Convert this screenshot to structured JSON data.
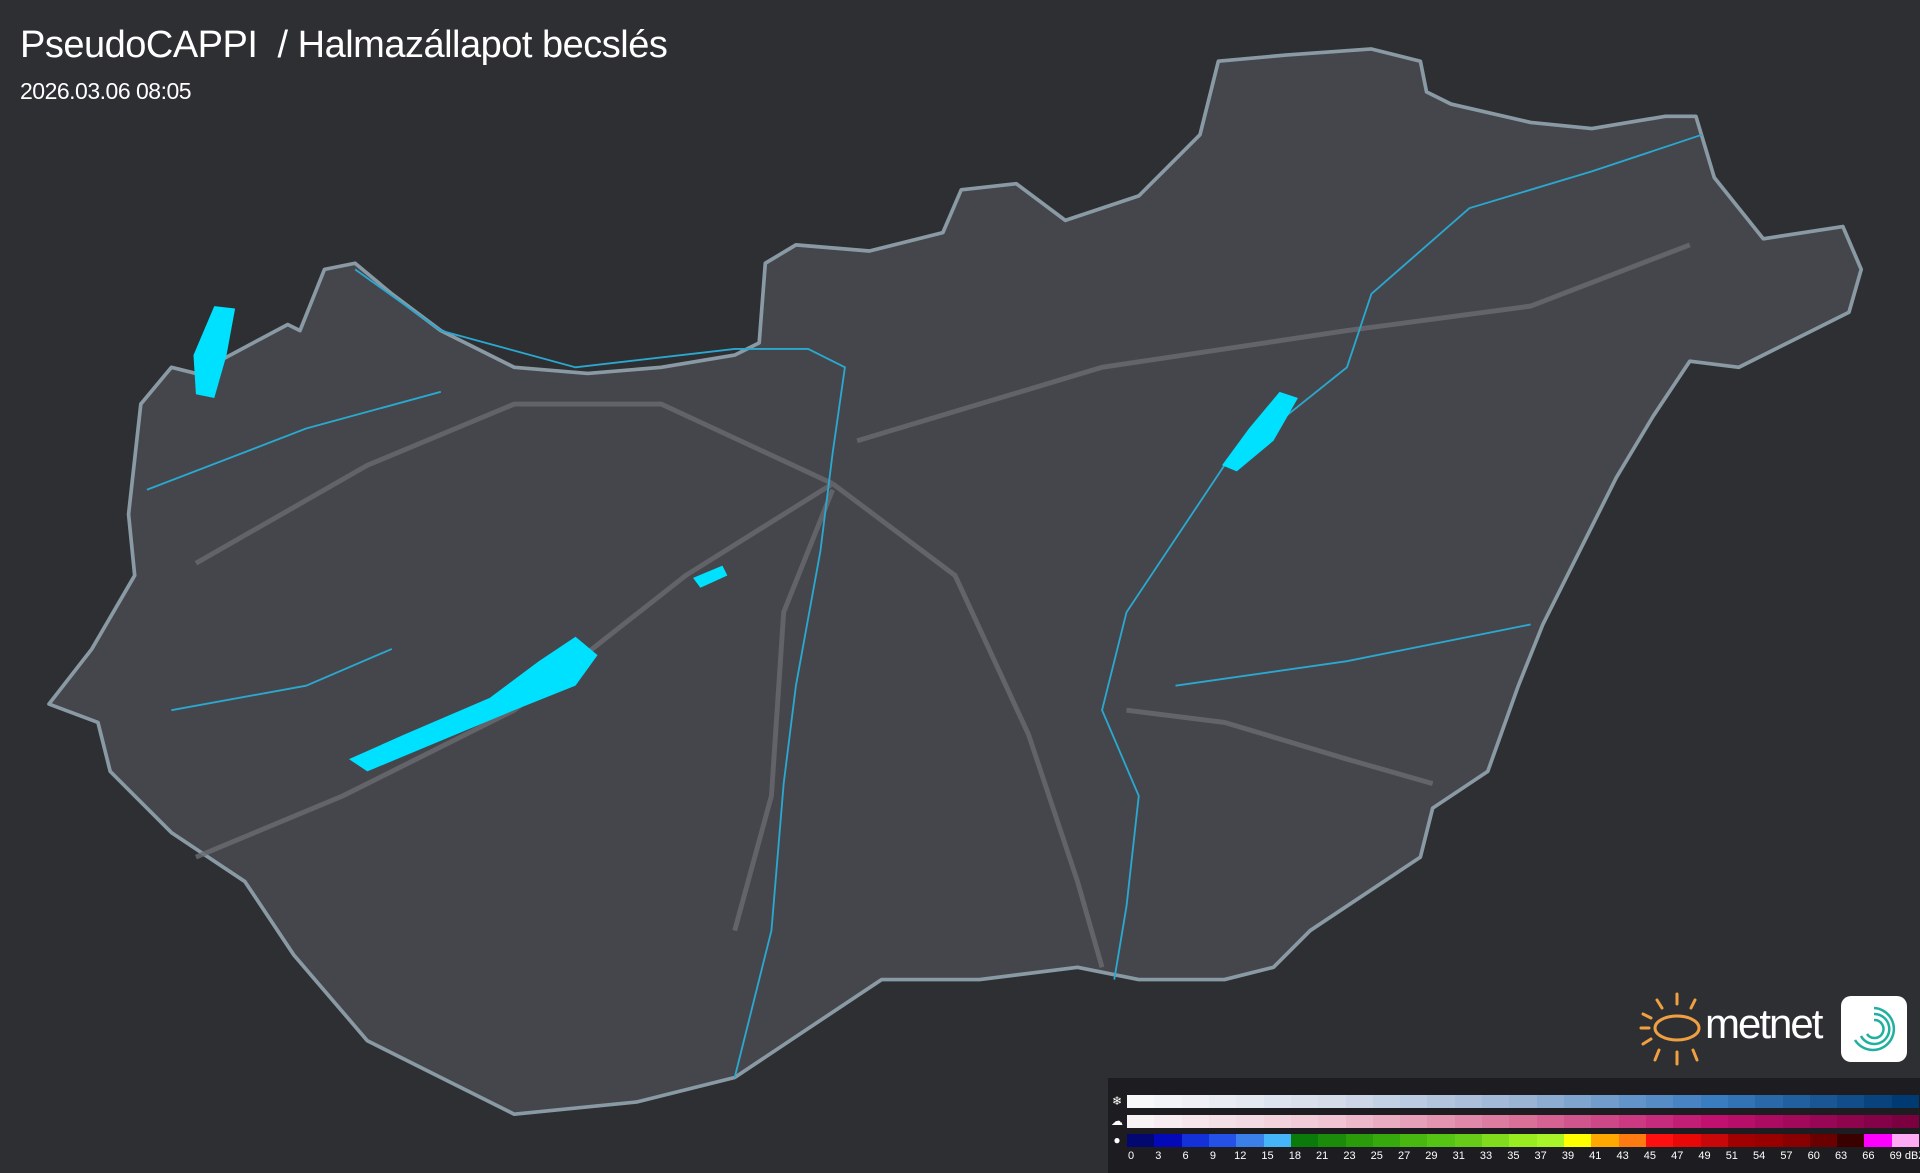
{
  "header": {
    "title": "PseudoCAPPI  / Halmazállapot becslés",
    "timestamp": "2026.03.06 08:05"
  },
  "colors": {
    "background": "#2e2f33",
    "country_fill": "#45464b",
    "border": "#8a9aa4",
    "rivers": "#2aa8d0",
    "water": "#00e0ff",
    "roads": "#6a6b70"
  },
  "legend": {
    "rows": [
      {
        "icon": "snowflake-icon",
        "symbol": "❄",
        "stops": [
          "#f8f8fa",
          "#d4dcea",
          "#9ab4d4",
          "#3a7cc0",
          "#003a72"
        ]
      },
      {
        "icon": "mixed-precip-icon",
        "symbol": "☁",
        "stops": [
          "#f8f4f6",
          "#f0c4d2",
          "#d87098",
          "#c01070",
          "#7a0040"
        ]
      },
      {
        "icon": "raindrop-icon",
        "symbol": "●",
        "colors": [
          "#020870",
          "#0308b8",
          "#1430d8",
          "#2452e8",
          "#3a80e8",
          "#46b4f8",
          "#0a7a0a",
          "#1a8c0a",
          "#2a9c0a",
          "#36aa0c",
          "#48b810",
          "#56c414",
          "#66cc18",
          "#80dc1c",
          "#98ec20",
          "#a8f428",
          "#ffff00",
          "#ffa800",
          "#ff7a10",
          "#ff1010",
          "#e80808",
          "#c80808",
          "#a00000",
          "#980000",
          "#880000",
          "#6a0000",
          "#3a0000",
          "#ff00ff",
          "#ffaaf5",
          "#a0f8f8"
        ]
      }
    ],
    "labels": [
      "0",
      "3",
      "6",
      "9",
      "12",
      "15",
      "18",
      "21",
      "23",
      "25",
      "27",
      "29",
      "31",
      "33",
      "35",
      "37",
      "39",
      "41",
      "43",
      "45",
      "47",
      "49",
      "51",
      "54",
      "57",
      "60",
      "63",
      "66",
      "69"
    ],
    "unit": "dBZ"
  },
  "branding": {
    "logo_text": "metnet"
  }
}
